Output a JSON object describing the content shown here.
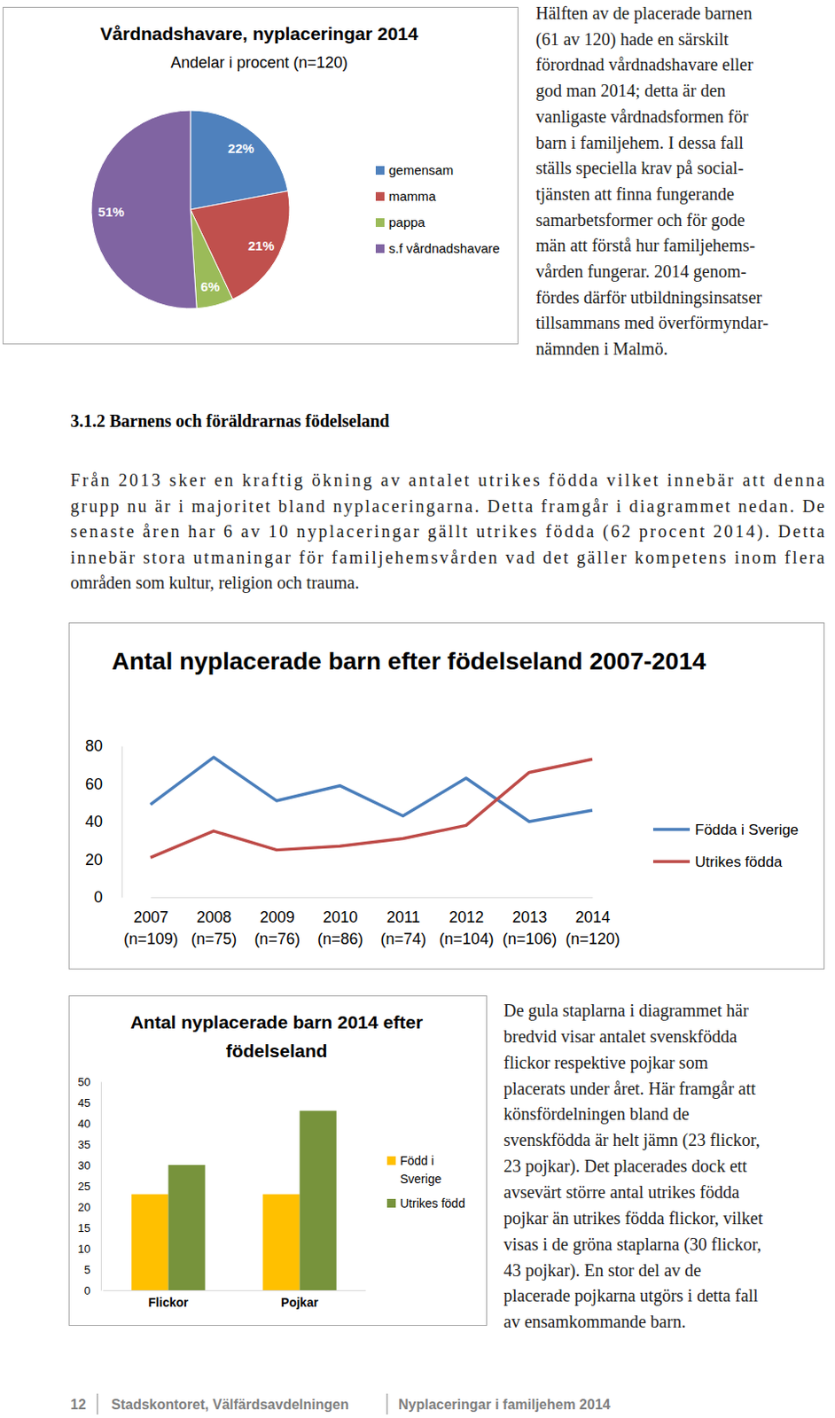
{
  "chart_data": [
    {
      "type": "pie",
      "title": "Vårdnadshavare, nyplaceringar 2014",
      "subtitle": "Andelar i procent (n=120)",
      "categories": [
        "gemensam",
        "mamma",
        "pappa",
        "s.f vårdnadshavare"
      ],
      "values": [
        22,
        21,
        6,
        51
      ],
      "value_labels": [
        "22%",
        "21%",
        "6%",
        "51%"
      ],
      "colors": [
        "#4f81bd",
        "#c0504d",
        "#9bbb59",
        "#8064a2"
      ],
      "data_labels": true,
      "legend": "right"
    },
    {
      "type": "line",
      "title": "Antal nyplacerade barn efter födelseland 2007-2014",
      "categories": [
        "2007 (n=109)",
        "2008 (n=75)",
        "2009 (n=76)",
        "2010 (n=86)",
        "2011 (n=74)",
        "2012 (n=104)",
        "2013 (n=106)",
        "2014 (n=120)"
      ],
      "series": [
        {
          "name": "Födda i Sverige",
          "color": "#4a7ebb",
          "values": [
            49,
            74,
            51,
            59,
            43,
            63,
            40,
            46
          ]
        },
        {
          "name": "Utrikes födda",
          "color": "#be4b48",
          "values": [
            21,
            35,
            25,
            27,
            31,
            38,
            66,
            73
          ]
        }
      ],
      "ylim": [
        0,
        80
      ],
      "yticks": [
        0,
        20,
        40,
        60,
        80
      ],
      "legend": "right"
    },
    {
      "type": "bar",
      "title": "Antal nyplacerade barn 2014 efter födelseland",
      "categories": [
        "Flickor",
        "Pojkar"
      ],
      "series": [
        {
          "name": "Född i Sverige",
          "color": "#ffc000",
          "values": [
            23,
            23
          ]
        },
        {
          "name": "Utrikes född",
          "color": "#77933c",
          "values": [
            30,
            43
          ]
        }
      ],
      "ylim": [
        0,
        50
      ],
      "yticks": [
        0,
        5,
        10,
        15,
        20,
        25,
        30,
        35,
        40,
        45,
        50
      ],
      "legend": "right"
    }
  ],
  "document": {
    "pie_paragraph": [
      "Hälften av de placerade barnen",
      "(61 av 120) hade en särskilt",
      "förordnad vårdnadshavare eller",
      "god man 2014; detta är den",
      "vanligaste vårdnadsformen för",
      "barn i familjehem. I dessa fall",
      "ställs speciella krav på social-",
      "tjänsten att finna fungerande",
      "samarbetsformer och för gode",
      "män att förstå hur familjehems-",
      "vården fungerar. 2014 genom-",
      "fördes därför utbildningsinsatser",
      "tillsammans med överförmyndar-",
      "nämnden i Malmö."
    ],
    "heading": "3.1.2 Barnens och föräldrarnas födelseland",
    "intro": [
      "Från 2013 sker en kraftig ökning av antalet utrikes födda vilket innebär att denna",
      "grupp nu är i majoritet bland nyplaceringarna. Detta framgår i diagrammet nedan. De",
      "senaste åren har 6 av 10 nyplaceringar gällt utrikes födda (62 procent 2014). Detta",
      "innebär stora utmaningar för familjehemsvården vad det gäller kompetens inom flera",
      "områden som kultur, religion och trauma."
    ],
    "bar_paragraph": [
      "De gula staplarna i diagrammet här",
      "bredvid visar antalet svenskfödda",
      "flickor respektive pojkar som",
      "placerats under året. Här framgår att",
      "könsfördelningen bland de",
      "svenskfödda är helt jämn (23 flickor,",
      "23 pojkar). Det placerades dock ett",
      "avsevärt större antal utrikes födda",
      "pojkar än utrikes födda flickor, vilket",
      "visas i de gröna staplarna (30 flickor,",
      "43 pojkar). En stor del av de",
      "placerade pojkarna utgörs i detta fall",
      "av ensamkommande barn."
    ],
    "footer": {
      "page": "12",
      "department": "Stadskontoret, Välfärdsavdelningen",
      "report": "Nyplaceringar i familjehem 2014"
    }
  }
}
